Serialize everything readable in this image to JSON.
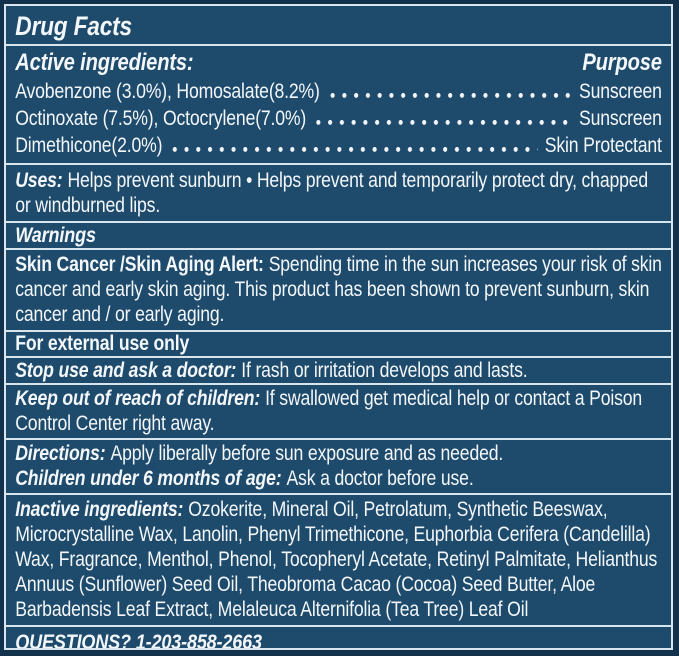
{
  "colors": {
    "frame": "#14314C",
    "background": "#1E4A6C",
    "hairline": "#D9E5ED",
    "text": "#F3F7FA"
  },
  "title": "Drug Facts",
  "active_ingredients": {
    "heading": "Active ingredients:",
    "purpose_heading": "Purpose",
    "rows": [
      {
        "ingredient": "Avobenzone (3.0%), Homosalate(8.2%)",
        "purpose": "Sunscreen"
      },
      {
        "ingredient": "Octinoxate (7.5%), Octocrylene(7.0%)",
        "purpose": "Sunscreen"
      },
      {
        "ingredient": "Dimethicone(2.0%)",
        "purpose": "Skin Protectant"
      }
    ]
  },
  "uses": {
    "label": "Uses:",
    "text": "Helps prevent sunburn • Helps prevent and temporarily protect dry, chapped or windburned lips."
  },
  "warnings": {
    "heading": "Warnings",
    "skin_cancer_alert": {
      "label": "Skin Cancer /Skin Aging Alert:",
      "text": "Spending time in the sun increases your risk of skin cancer and early skin aging. This product has been shown to prevent sunburn, skin cancer and / or early aging."
    },
    "external_use": "For external use only",
    "stop_use": {
      "label": "Stop use and ask a doctor:",
      "text": "If rash or irritation develops and lasts."
    },
    "keep_out": {
      "label": "Keep out of reach of children:",
      "text": "If swallowed get medical help or contact a Poison Control Center right away."
    }
  },
  "directions": {
    "label": "Directions:",
    "text": "Apply liberally before sun exposure and as needed."
  },
  "children_under_6": {
    "label": "Children under 6 months of age:",
    "text": "Ask a doctor before use."
  },
  "inactive_ingredients": {
    "label": "Inactive ingredients:",
    "text": "Ozokerite, Mineral Oil, Petrolatum, Synthetic Beeswax, Microcrystalline Wax, Lanolin, Phenyl Trimethicone, Euphorbia Cerifera (Candelilla) Wax, Fragrance, Menthol, Phenol, Tocopheryl Acetate, Retinyl Palmitate, Helianthus Annuus (Sunflower) Seed Oil, Theobroma Cacao (Cocoa) Seed Butter, Aloe Barbadensis Leaf Extract, Melaleuca Alternifolia (Tea Tree) Leaf Oil"
  },
  "questions": "QUESTIONS? 1-203-858-2663"
}
